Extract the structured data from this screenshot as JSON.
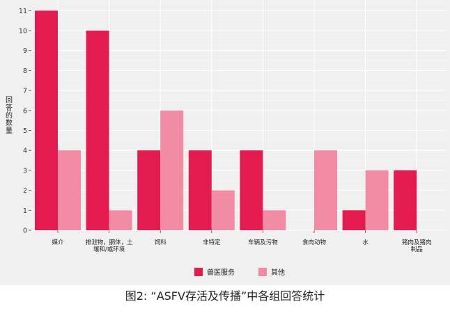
{
  "chart_data": {
    "type": "bar",
    "categories": [
      "媒介",
      "排泄物，胴体，土壤和/或环境",
      "饲料",
      "非特定",
      "车辆及污物",
      "食肉动物",
      "水",
      "猪肉及猪肉制品"
    ],
    "category_lines": [
      [
        "媒介"
      ],
      [
        "排泄物，胴体，土",
        "壤和/或环境"
      ],
      [
        "饲料"
      ],
      [
        "非特定"
      ],
      [
        "车辆及污物"
      ],
      [
        "食肉动物"
      ],
      [
        "水"
      ],
      [
        "猪肉及猪肉",
        "制品"
      ]
    ],
    "series": [
      {
        "name": "兽医服务",
        "color": "#e31b4f",
        "values": [
          11,
          10,
          4,
          4,
          4,
          0,
          1,
          3
        ]
      },
      {
        "name": "其他",
        "color": "#f28ba4",
        "values": [
          4,
          1,
          6,
          2,
          1,
          4,
          3,
          0
        ]
      }
    ],
    "ylabel": "回答的数量",
    "yticks": [
      0,
      1,
      2,
      3,
      4,
      5,
      6,
      7,
      8,
      9,
      10,
      11
    ],
    "ylim": [
      0,
      11.5
    ],
    "grid": true,
    "legend": "bottom"
  },
  "caption": "图2: “ASFV存活及传播”中各组回答统计"
}
